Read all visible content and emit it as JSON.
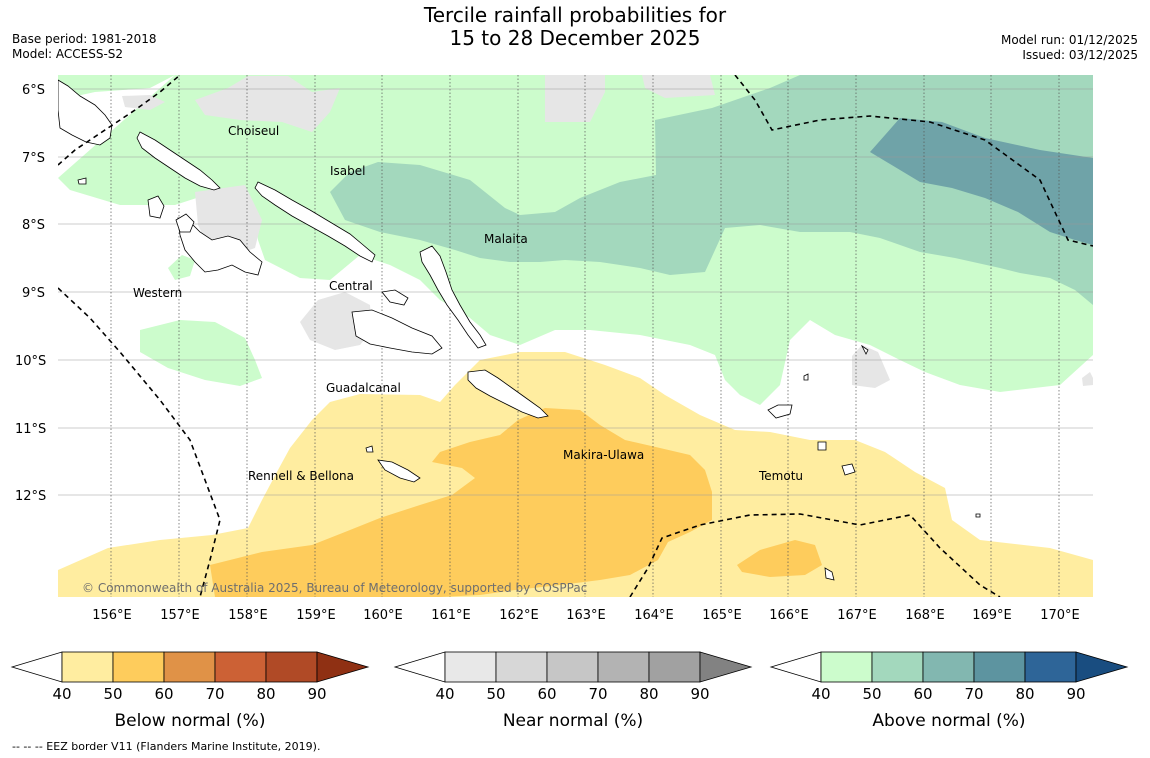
{
  "header": {
    "title_line1": "Tercile rainfall probabilities for",
    "title_line2": "15 to 28 December 2025",
    "base_period": "Base period: 1981-2018",
    "model": "Model: ACCESS-S2",
    "model_run": "Model run: 01/12/2025",
    "issued": "Issued: 03/12/2025"
  },
  "map": {
    "lat_labels": [
      "6°S",
      "7°S",
      "8°S",
      "9°S",
      "10°S",
      "11°S",
      "12°S"
    ],
    "lon_labels": [
      "156°E",
      "157°E",
      "158°E",
      "159°E",
      "160°E",
      "161°E",
      "162°E",
      "163°E",
      "164°E",
      "165°E",
      "166°E",
      "167°E",
      "168°E",
      "169°E",
      "170°E"
    ],
    "place_labels": {
      "choiseul": "Choiseul",
      "isabel": "Isabel",
      "malaita": "Malaita",
      "western": "Western",
      "central": "Central",
      "guadalcanal": "Guadalcanal",
      "makira": "Makira-Ulawa",
      "rennell": "Rennell & Bellona",
      "temotu": "Temotu"
    },
    "copyright": "© Commonwealth of Australia 2025, Bureau of Meteorology, supported by COSPPac"
  },
  "legends": {
    "below": {
      "title": "Below normal (%)",
      "ticks": [
        "40",
        "50",
        "60",
        "70",
        "80",
        "90"
      ],
      "colors": [
        "#ffffff",
        "#ffeda0",
        "#fecc5c",
        "#e09247",
        "#cc6135",
        "#b04a26",
        "#8f3013"
      ]
    },
    "near": {
      "title": "Near normal (%)",
      "ticks": [
        "40",
        "50",
        "60",
        "70",
        "80",
        "90"
      ],
      "colors": [
        "#ffffff",
        "#e8e8e8",
        "#d7d7d7",
        "#c6c6c6",
        "#b3b3b3",
        "#a1a1a1",
        "#828282"
      ]
    },
    "above": {
      "title": "Above normal (%)",
      "ticks": [
        "40",
        "50",
        "60",
        "70",
        "80",
        "90"
      ],
      "colors": [
        "#ffffff",
        "#ccfccc",
        "#a3d8bd",
        "#82b7b0",
        "#5d94a0",
        "#2e6598",
        "#194d80"
      ]
    }
  },
  "footer": {
    "eez_note": "--  --  -- EEZ border V11 (Flanders Marine Institute, 2019)."
  }
}
